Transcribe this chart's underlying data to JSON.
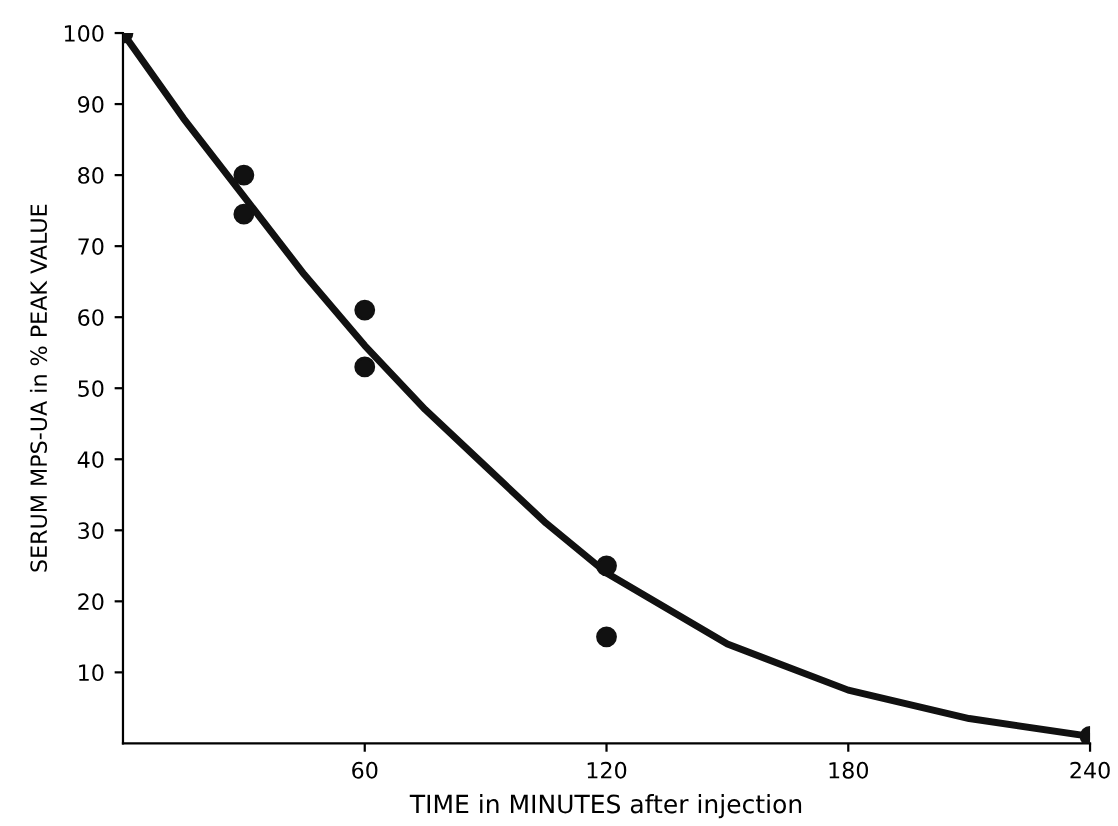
{
  "chart_data": {
    "type": "scatter",
    "xlabel": "TIME in MINUTES after injection",
    "ylabel": "SERUM MPS-UA in % PEAK VALUE",
    "series": [
      {
        "marker": "circle",
        "color": "#111111",
        "x": [
          0,
          30,
          30,
          60,
          60,
          120,
          120,
          240
        ],
        "values": [
          100,
          80,
          74.5,
          61,
          53,
          25,
          15,
          1
        ]
      },
      {
        "type": "line",
        "color": "#111111",
        "x": [
          0,
          15,
          30,
          45,
          60,
          75,
          90,
          105,
          120,
          150,
          180,
          210,
          240
        ],
        "values": [
          100,
          88,
          77,
          66,
          56,
          47,
          39,
          31,
          24,
          14,
          7.5,
          3.5,
          1
        ]
      }
    ],
    "xlim": [
      0,
      240
    ],
    "ylim": [
      0,
      100
    ],
    "xticks": [
      60,
      120,
      180,
      240
    ],
    "yticks": [
      10,
      20,
      30,
      40,
      50,
      60,
      70,
      80,
      90,
      100
    ],
    "grid": false,
    "legend": false
  }
}
